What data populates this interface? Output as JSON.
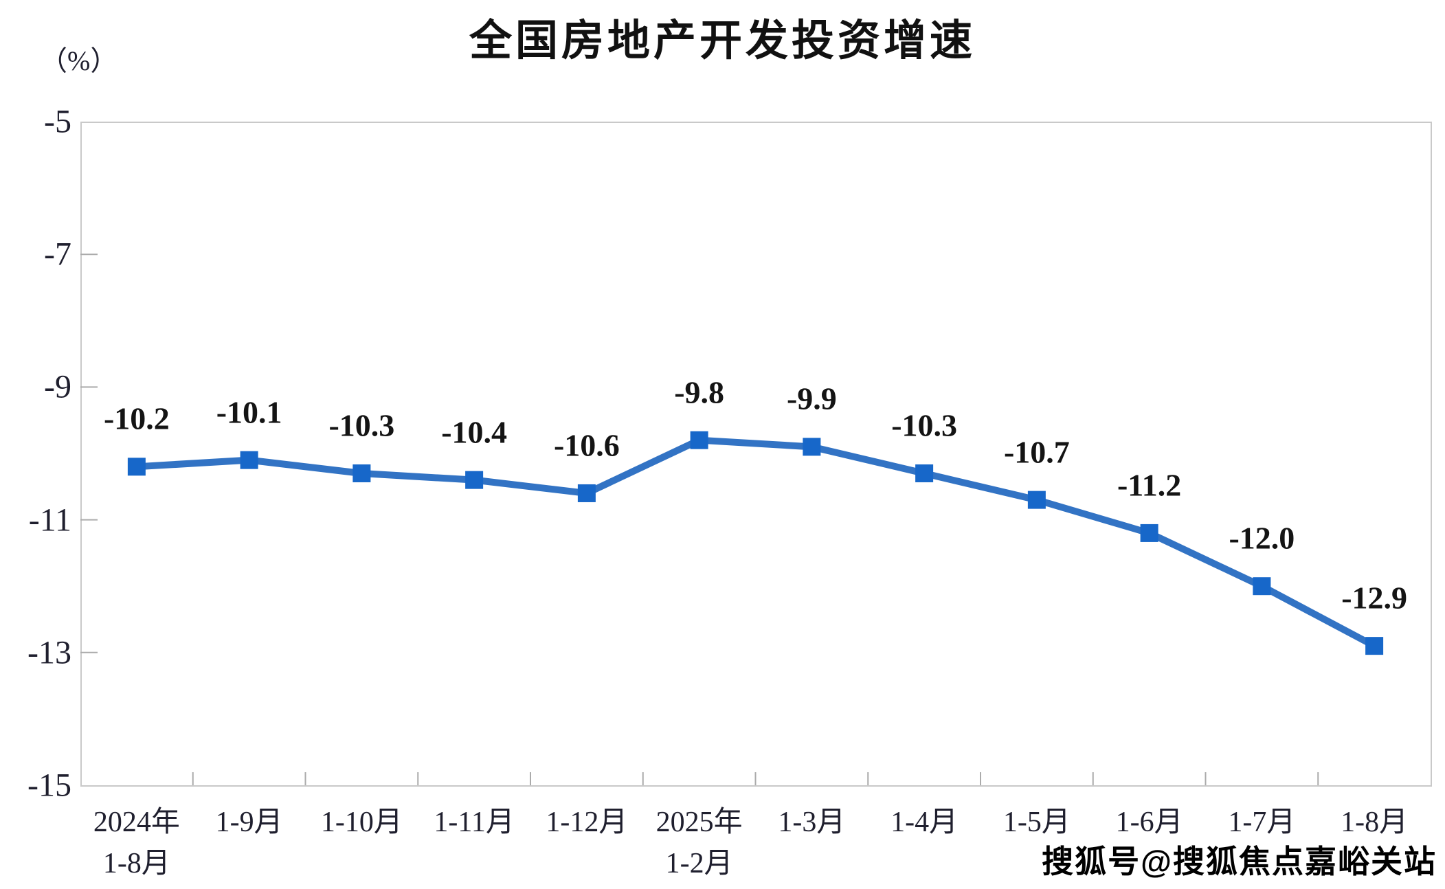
{
  "title": "全国房地产开发投资增速",
  "y_unit": "（%）",
  "watermark": "搜狐号@搜狐焦点嘉峪关站",
  "colors": {
    "line": "#3273C4",
    "marker": "#1767C9",
    "plot_border": "#C9C9C9",
    "tick": "#ABABAB",
    "axis_text": "#1F1F2E",
    "data_label": "#141414",
    "title_text": "#111111"
  },
  "chart_data": {
    "type": "line",
    "title": "全国房地产开发投资增速",
    "ylabel": "（%）",
    "series_name": "全国房地产开发投资增速",
    "categories": [
      "2024年\n1-8月",
      "1-9月",
      "1-10月",
      "1-11月",
      "1-12月",
      "2025年\n1-2月",
      "1-3月",
      "1-4月",
      "1-5月",
      "1-6月",
      "1-7月",
      "1-8月"
    ],
    "values": [
      -10.2,
      -10.1,
      -10.3,
      -10.4,
      -10.6,
      -9.8,
      -9.9,
      -10.3,
      -10.7,
      -11.2,
      -12.0,
      -12.9
    ],
    "labels": [
      "-10.2",
      "-10.1",
      "-10.3",
      "-10.4",
      "-10.6",
      "-9.8",
      "-9.9",
      "-10.3",
      "-10.7",
      "-11.2",
      "-12.0",
      "-12.9"
    ],
    "ylim": [
      -15,
      -5
    ],
    "yticks": [
      -5,
      -7,
      -9,
      -11,
      -13,
      -15
    ],
    "ytick_labels": [
      "-5",
      "-7",
      "-9",
      "-11",
      "-13",
      "-15"
    ],
    "grid": false,
    "legend": "none",
    "marker_shape": "square"
  }
}
